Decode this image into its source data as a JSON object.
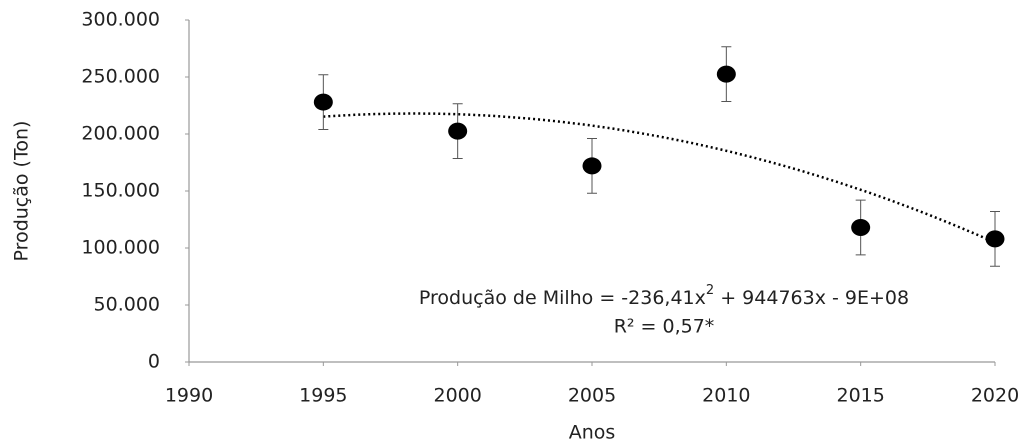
{
  "chart_data": {
    "type": "scatter",
    "x_label": "Anos",
    "y_label": "Produção (Ton)",
    "x": [
      1995,
      2000,
      2005,
      2010,
      2015,
      2020
    ],
    "series": [
      {
        "color": "#000000",
        "values": [
          228000,
          202500,
          172000,
          252500,
          118000,
          108000
        ],
        "errors": [
          24000,
          24000,
          24000,
          24000,
          24000,
          24000
        ]
      }
    ],
    "trendline": {
      "kind": "polynomial",
      "order": 2,
      "color": "#000000"
    },
    "annotations": {
      "equation": [
        "Produção de Milho = -236,41x",
        "2",
        " + 944763x - 9E+08"
      ],
      "r2": "R² = 0,57*"
    },
    "xlim": [
      1990,
      2020
    ],
    "xticks": [
      1990,
      1995,
      2000,
      2005,
      2010,
      2015,
      2020
    ],
    "ylim": [
      0,
      300000
    ],
    "yticks": [
      0,
      {
        "value": 50000,
        "label": "50.000"
      },
      {
        "value": 100000,
        "label": "100.000"
      },
      {
        "value": 150000,
        "label": "150.000"
      },
      {
        "value": 200000,
        "label": "200.000"
      },
      {
        "value": 250000,
        "label": "250.000"
      },
      {
        "value": 300000,
        "label": "300.000"
      }
    ],
    "grid": false
  }
}
